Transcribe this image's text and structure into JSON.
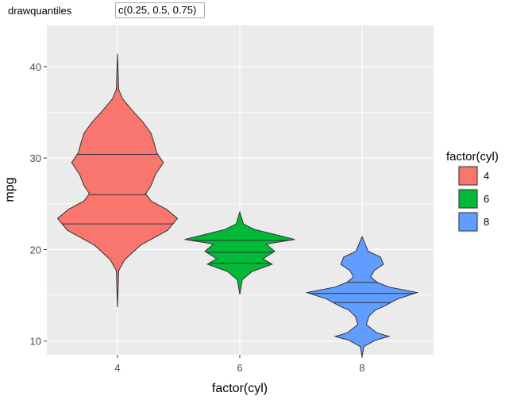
{
  "controls": {
    "param_label": "drawquantiles",
    "param_value": "c(0.25, 0.5, 0.75)"
  },
  "chart_data": {
    "type": "violin",
    "xlabel": "factor(cyl)",
    "ylabel": "mpg",
    "categories": [
      "4",
      "6",
      "8"
    ],
    "ylim": [
      8.5,
      44.5
    ],
    "yticks": [
      10,
      20,
      30,
      40
    ],
    "grid": true,
    "legend": {
      "title": "factor(cyl)",
      "position": "right",
      "items": [
        {
          "label": "4",
          "color": "#F8766D"
        },
        {
          "label": "6",
          "color": "#00BA38"
        },
        {
          "label": "8",
          "color": "#619CFF"
        }
      ]
    },
    "series": [
      {
        "category": "4",
        "color": "#F8766D",
        "y_range": [
          13.7,
          41.4
        ],
        "quantiles": [
          22.8,
          26.0,
          30.4
        ],
        "density": [
          [
            13.7,
            0.0
          ],
          [
            17.7,
            0.02
          ],
          [
            18.9,
            0.12
          ],
          [
            20.5,
            0.38
          ],
          [
            22.1,
            0.82
          ],
          [
            23.4,
            0.98
          ],
          [
            24.4,
            0.8
          ],
          [
            25.3,
            0.55
          ],
          [
            26.1,
            0.46
          ],
          [
            27.0,
            0.55
          ],
          [
            28.2,
            0.62
          ],
          [
            29.5,
            0.75
          ],
          [
            30.6,
            0.64
          ],
          [
            31.6,
            0.6
          ],
          [
            32.7,
            0.55
          ],
          [
            33.9,
            0.42
          ],
          [
            35.3,
            0.23
          ],
          [
            36.5,
            0.08
          ],
          [
            37.5,
            0.02
          ],
          [
            41.4,
            0.0
          ]
        ]
      },
      {
        "category": "6",
        "color": "#00BA38",
        "y_range": [
          15.1,
          24.1
        ],
        "quantiles": [
          18.5,
          19.7,
          21.0
        ],
        "density": [
          [
            15.1,
            0.0
          ],
          [
            16.7,
            0.04
          ],
          [
            17.6,
            0.2
          ],
          [
            18.4,
            0.53
          ],
          [
            19.0,
            0.38
          ],
          [
            19.8,
            0.57
          ],
          [
            20.6,
            0.43
          ],
          [
            21.1,
            0.9
          ],
          [
            21.6,
            0.6
          ],
          [
            22.2,
            0.24
          ],
          [
            22.8,
            0.06
          ],
          [
            24.1,
            0.0
          ]
        ]
      },
      {
        "category": "8",
        "color": "#619CFF",
        "y_range": [
          8.3,
          21.4
        ],
        "quantiles": [
          14.2,
          15.2,
          16.4
        ],
        "density": [
          [
            8.3,
            0.0
          ],
          [
            9.4,
            0.03
          ],
          [
            10.1,
            0.22
          ],
          [
            10.5,
            0.44
          ],
          [
            10.9,
            0.24
          ],
          [
            11.8,
            0.07
          ],
          [
            12.7,
            0.11
          ],
          [
            13.4,
            0.22
          ],
          [
            13.8,
            0.36
          ],
          [
            14.6,
            0.58
          ],
          [
            15.3,
            0.9
          ],
          [
            15.9,
            0.44
          ],
          [
            16.4,
            0.25
          ],
          [
            17.0,
            0.14
          ],
          [
            17.7,
            0.2
          ],
          [
            18.4,
            0.35
          ],
          [
            19.2,
            0.3
          ],
          [
            19.8,
            0.1
          ],
          [
            21.4,
            0.0
          ]
        ]
      }
    ]
  }
}
